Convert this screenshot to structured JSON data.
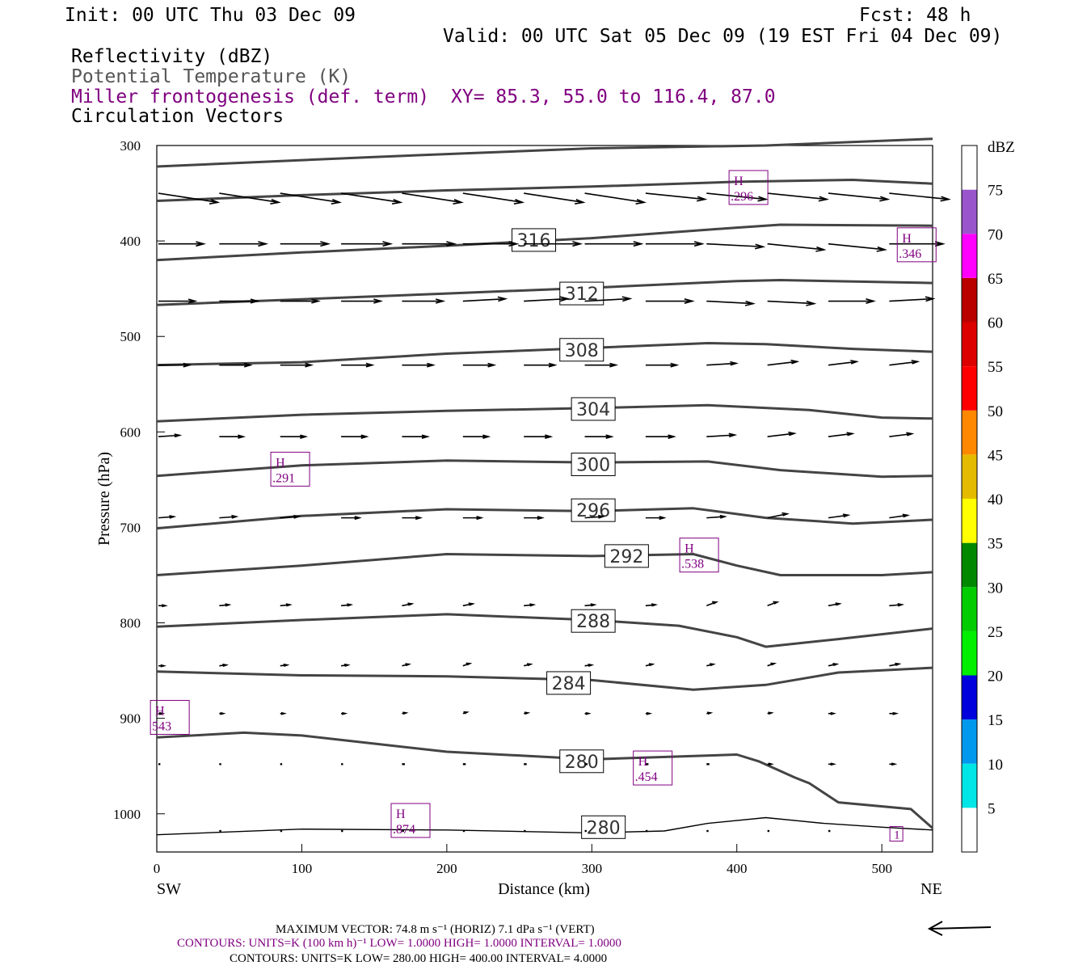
{
  "header": {
    "init": "Init: 00 UTC Thu 03 Dec 09",
    "fcst": "Fcst:   48 h",
    "valid": "Valid: 00 UTC Sat 05 Dec 09 (19 EST Fri 04 Dec 09)"
  },
  "legend_titles": {
    "reflectivity": "Reflectivity (dBZ)",
    "theta": "Potential Temperature (K)",
    "frontogenesis": "Miller frontogenesis (def. term)",
    "xy": "XY=  85.3, 55.0 to 116.4, 87.0",
    "vectors": "Circulation Vectors"
  },
  "footer": {
    "max_vector": "MAXIMUM VECTOR:  74.8 m s⁻¹ (HORIZ)        7.1 dPa s⁻¹ (VERT)",
    "contours_fronto": "CONTOURS:  UNITS=K (100 km h)⁻¹  LOW=  1.0000       HIGH=  1.0000       INTERVAL=   1.0000",
    "contours_theta": "CONTOURS:  UNITS=K  LOW=  280.00       HIGH=  400.00       INTERVAL=   4.0000"
  },
  "colors": {
    "theta": "#444444",
    "fronto": "#800080",
    "vector": "#000000"
  },
  "chart_data": {
    "type": "line",
    "xlabel": "Distance (km)",
    "ylabel": "Pressure (hPa)",
    "x_end_labels": [
      "SW",
      "NE"
    ],
    "xlim": [
      0,
      535
    ],
    "ylim": [
      300,
      1040
    ],
    "y_scale": "linear-inverted",
    "xticks": [
      "0",
      "100",
      "200",
      "300",
      "400",
      "500"
    ],
    "yticks": [
      "300",
      "400",
      "500",
      "600",
      "700",
      "800",
      "900",
      "1000"
    ],
    "xtick_values": [
      0,
      100,
      200,
      300,
      400,
      500
    ],
    "ytick_values": [
      300,
      400,
      500,
      600,
      700,
      800,
      900,
      1000
    ],
    "colorbar": {
      "label": "dBZ",
      "levels": [
        "5",
        "10",
        "15",
        "20",
        "25",
        "30",
        "35",
        "40",
        "45",
        "50",
        "55",
        "60",
        "65",
        "70",
        "75"
      ],
      "colors": [
        "#ffffff",
        "#00e5e5",
        "#0099ee",
        "#0000dd",
        "#00ee00",
        "#00cc00",
        "#008800",
        "#ffff00",
        "#e5bb00",
        "#ff8800",
        "#ff0000",
        "#dd0000",
        "#bb0000",
        "#ff00ff",
        "#9955cc",
        "#ffffff"
      ]
    },
    "theta_contours": [
      {
        "label": "",
        "points": [
          [
            0,
            322
          ],
          [
            150,
            312
          ],
          [
            300,
            303
          ],
          [
            420,
            300
          ],
          [
            535,
            293
          ]
        ]
      },
      {
        "label": "",
        "points": [
          [
            0,
            358
          ],
          [
            100,
            352
          ],
          [
            200,
            347
          ],
          [
            300,
            343
          ],
          [
            400,
            338
          ],
          [
            480,
            336
          ],
          [
            535,
            340
          ]
        ]
      },
      {
        "label": "316",
        "label_at": [
          260,
          399
        ],
        "points": [
          [
            0,
            420
          ],
          [
            100,
            412
          ],
          [
            200,
            405
          ],
          [
            300,
            397
          ],
          [
            400,
            386
          ],
          [
            430,
            383
          ],
          [
            535,
            384
          ]
        ]
      },
      {
        "label": "312",
        "label_at": [
          293,
          455
        ],
        "points": [
          [
            0,
            467
          ],
          [
            100,
            461
          ],
          [
            200,
            455
          ],
          [
            300,
            449
          ],
          [
            400,
            442
          ],
          [
            430,
            441
          ],
          [
            535,
            444
          ]
        ]
      },
      {
        "label": "308",
        "label_at": [
          293,
          514
        ],
        "points": [
          [
            0,
            530
          ],
          [
            100,
            527
          ],
          [
            200,
            518
          ],
          [
            300,
            512
          ],
          [
            380,
            507
          ],
          [
            420,
            508
          ],
          [
            480,
            513
          ],
          [
            535,
            516
          ]
        ]
      },
      {
        "label": "304",
        "label_at": [
          301,
          576
        ],
        "points": [
          [
            0,
            589
          ],
          [
            100,
            582
          ],
          [
            200,
            578
          ],
          [
            300,
            575
          ],
          [
            380,
            572
          ],
          [
            450,
            577
          ],
          [
            500,
            585
          ],
          [
            535,
            586
          ]
        ]
      },
      {
        "label": "300",
        "label_at": [
          301,
          634
        ],
        "points": [
          [
            0,
            646
          ],
          [
            100,
            635
          ],
          [
            200,
            630
          ],
          [
            300,
            632
          ],
          [
            380,
            631
          ],
          [
            430,
            640
          ],
          [
            500,
            647
          ],
          [
            535,
            646
          ]
        ]
      },
      {
        "label": "296",
        "label_at": [
          301,
          682
        ],
        "points": [
          [
            0,
            701
          ],
          [
            100,
            688
          ],
          [
            200,
            681
          ],
          [
            300,
            683
          ],
          [
            370,
            680
          ],
          [
            420,
            690
          ],
          [
            480,
            696
          ],
          [
            535,
            692
          ]
        ]
      },
      {
        "label": "292",
        "label_at": [
          324,
          730
        ],
        "points": [
          [
            0,
            750
          ],
          [
            100,
            740
          ],
          [
            200,
            728
          ],
          [
            300,
            730
          ],
          [
            370,
            728
          ],
          [
            400,
            740
          ],
          [
            430,
            750
          ],
          [
            500,
            750
          ],
          [
            535,
            747
          ]
        ]
      },
      {
        "label": "288",
        "label_at": [
          301,
          798
        ],
        "points": [
          [
            0,
            804
          ],
          [
            100,
            797
          ],
          [
            200,
            791
          ],
          [
            300,
            797
          ],
          [
            360,
            803
          ],
          [
            400,
            815
          ],
          [
            420,
            825
          ],
          [
            470,
            817
          ],
          [
            535,
            806
          ]
        ]
      },
      {
        "label": "284",
        "label_at": [
          284,
          863
        ],
        "points": [
          [
            0,
            851
          ],
          [
            100,
            855
          ],
          [
            200,
            856
          ],
          [
            300,
            860
          ],
          [
            370,
            870
          ],
          [
            420,
            865
          ],
          [
            470,
            852
          ],
          [
            535,
            847
          ]
        ]
      },
      {
        "label": "280",
        "label_at": [
          293,
          945
        ],
        "points": [
          [
            0,
            920
          ],
          [
            60,
            915
          ],
          [
            100,
            918
          ],
          [
            200,
            935
          ],
          [
            300,
            943
          ],
          [
            360,
            940
          ],
          [
            400,
            938
          ],
          [
            415,
            945
          ],
          [
            440,
            962
          ],
          [
            450,
            968
          ],
          [
            470,
            988
          ],
          [
            520,
            995
          ],
          [
            535,
            1015
          ]
        ]
      },
      {
        "label": "280",
        "label_at": [
          308,
          1014
        ],
        "points": [
          [
            0,
            1022
          ],
          [
            100,
            1016
          ],
          [
            200,
            1017
          ],
          [
            300,
            1020
          ],
          [
            350,
            1018
          ],
          [
            380,
            1010
          ],
          [
            420,
            1004
          ],
          [
            460,
            1010
          ],
          [
            500,
            1014
          ],
          [
            535,
            1017
          ]
        ]
      }
    ],
    "frontogenesis_maxima": [
      {
        "symbol": "H",
        "value": ".296",
        "x": 408,
        "y": 344
      },
      {
        "symbol": "H",
        "value": ".346",
        "x": 524,
        "y": 404
      },
      {
        "symbol": "H",
        "value": ".291",
        "x": 92,
        "y": 639
      },
      {
        "symbol": "H",
        "value": ".538",
        "x": 374,
        "y": 729
      },
      {
        "symbol": "H",
        "value": "543",
        "x": 9,
        "y": 899
      },
      {
        "symbol": "H",
        "value": ".454",
        "x": 342,
        "y": 952
      },
      {
        "symbol": "H",
        "value": ".874",
        "x": 175,
        "y": 1007
      },
      {
        "symbol": "",
        "value": "1",
        "x": 510,
        "y": 1021
      }
    ],
    "vector_rows": [
      {
        "p": 350,
        "x": [
          0,
          42,
          84,
          126,
          168,
          210,
          252,
          294,
          336,
          378,
          420,
          462,
          504
        ],
        "u": [
          42,
          42,
          42,
          42,
          42,
          42,
          42,
          42,
          42,
          42,
          42,
          42,
          42
        ],
        "w": [
          -0.3,
          -0.3,
          -0.3,
          -0.3,
          -0.3,
          -0.3,
          -0.3,
          -0.3,
          -0.2,
          -0.2,
          -0.2,
          -0.2,
          -0.2
        ]
      },
      {
        "p": 403,
        "x": [
          0,
          42,
          84,
          126,
          168,
          210,
          252,
          294,
          336,
          378,
          420,
          462,
          504
        ],
        "u": [
          32,
          33,
          34,
          35,
          37,
          38,
          40,
          40,
          40,
          40,
          40,
          40,
          38
        ],
        "w": [
          0,
          0,
          0,
          0,
          0,
          0,
          0,
          0,
          0,
          -0.1,
          -0.2,
          -0.2,
          0
        ]
      },
      {
        "p": 463,
        "x": [
          0,
          42,
          84,
          126,
          168,
          210,
          252,
          294,
          336,
          378,
          420,
          462,
          504
        ],
        "u": [
          26,
          27,
          27,
          28,
          29,
          30,
          31,
          32,
          33,
          33,
          33,
          32,
          31
        ],
        "w": [
          0,
          0,
          0,
          0,
          0,
          0.1,
          0.1,
          0.1,
          0,
          -0.1,
          -0.1,
          0,
          0.1
        ]
      },
      {
        "p": 530,
        "x": [
          0,
          42,
          84,
          126,
          168,
          210,
          252,
          294,
          336,
          378,
          420,
          462,
          504
        ],
        "u": [
          22,
          22,
          22,
          22,
          22,
          22,
          22,
          22,
          22,
          21,
          21,
          20,
          20
        ],
        "w": [
          0,
          0,
          0,
          0,
          0,
          0,
          0,
          0,
          0,
          0.1,
          0.2,
          0.2,
          0.2
        ]
      },
      {
        "p": 605,
        "x": [
          0,
          42,
          84,
          126,
          168,
          210,
          252,
          294,
          336,
          378,
          420,
          462,
          504
        ],
        "u": [
          15,
          17,
          18,
          18,
          18,
          18,
          19,
          19,
          20,
          20,
          19,
          17,
          16
        ],
        "w": [
          0.1,
          0,
          0,
          0,
          0,
          0,
          0,
          0,
          0,
          0.1,
          0.2,
          0.2,
          0.2
        ]
      },
      {
        "p": 690,
        "x": [
          0,
          42,
          84,
          126,
          168,
          210,
          252,
          294,
          336,
          378,
          420,
          462,
          504
        ],
        "u": [
          11,
          12,
          13,
          13,
          13,
          13,
          13,
          13,
          13,
          13,
          14,
          14,
          13
        ],
        "w": [
          0.1,
          0.1,
          0.1,
          0,
          0,
          0,
          0,
          0.1,
          0,
          0.1,
          0.3,
          0.2,
          0.2
        ]
      },
      {
        "p": 782,
        "x": [
          0,
          42,
          84,
          126,
          168,
          210,
          252,
          294,
          336,
          378,
          420,
          462,
          504
        ],
        "u": [
          5,
          7,
          7,
          7,
          7,
          7,
          7,
          7,
          7,
          7,
          7,
          8,
          9
        ],
        "w": [
          0,
          0.1,
          0.1,
          0.1,
          0.2,
          0.2,
          0.1,
          0.1,
          0.1,
          0.4,
          0.4,
          0.2,
          0.1
        ]
      },
      {
        "p": 845,
        "x": [
          0,
          42,
          84,
          126,
          168,
          210,
          252,
          294,
          336,
          378,
          420,
          462,
          504
        ],
        "u": [
          4,
          5,
          5,
          5,
          5,
          5,
          5,
          5,
          5,
          5,
          5,
          6,
          7
        ],
        "w": [
          0,
          0.1,
          0.1,
          0.1,
          0.2,
          0.3,
          0.2,
          0.1,
          0.2,
          0.2,
          0.3,
          0.2,
          0.2
        ]
      },
      {
        "p": 895,
        "x": [
          0,
          42,
          84,
          126,
          168,
          210,
          252,
          294,
          336,
          378,
          420,
          462,
          504
        ],
        "u": [
          3,
          3,
          3,
          3,
          3,
          3,
          3,
          3,
          3,
          3,
          3,
          4,
          5
        ],
        "w": [
          0,
          0,
          0,
          0,
          0.1,
          0.2,
          0.1,
          0,
          0,
          0.1,
          0.1,
          0,
          0
        ]
      },
      {
        "p": 948,
        "x": [
          0,
          42,
          84,
          126,
          168,
          210,
          252,
          294,
          336,
          378,
          420,
          462,
          504
        ],
        "u": [
          1,
          1,
          1,
          1,
          2,
          2,
          2,
          2,
          2,
          2,
          3,
          4,
          4
        ],
        "w": [
          0,
          0,
          0,
          0,
          0.1,
          0.1,
          0.1,
          0,
          0,
          0.1,
          0,
          0,
          0
        ]
      },
      {
        "p": 1018,
        "x": [
          42,
          84,
          126,
          168,
          210,
          252,
          294,
          336,
          378,
          420,
          462
        ],
        "u": [
          1,
          1,
          1,
          1,
          1,
          1,
          1,
          1,
          1,
          1,
          1
        ],
        "w": [
          0,
          0,
          0,
          0,
          0,
          0,
          0,
          0,
          0,
          0,
          0
        ]
      }
    ],
    "reference_vector": {
      "u": -74.8,
      "w": 0
    }
  }
}
